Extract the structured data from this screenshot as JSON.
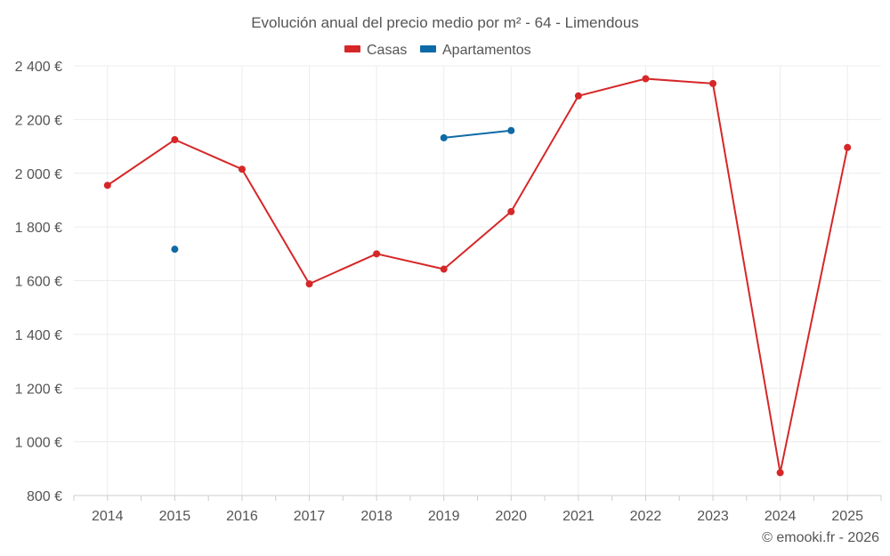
{
  "chart_data": {
    "type": "line",
    "title": "Evolución anual del precio medio por m² - 64 - Limendous",
    "categories": [
      "2014",
      "2015",
      "2016",
      "2017",
      "2018",
      "2019",
      "2020",
      "2021",
      "2022",
      "2023",
      "2024",
      "2025"
    ],
    "ylim": [
      800,
      2400
    ],
    "yticks": [
      800,
      1000,
      1200,
      1400,
      1600,
      1800,
      2000,
      2200,
      2400
    ],
    "ytick_labels": [
      "800 €",
      "1 000 €",
      "1 200 €",
      "1 400 €",
      "1 600 €",
      "1 800 €",
      "2 000 €",
      "2 200 €",
      "2 400 €"
    ],
    "grid": true,
    "legend_position": "top-center",
    "series": [
      {
        "name": "Casas",
        "color": "#d62728",
        "values": [
          1955,
          2125,
          2015,
          1588,
          1700,
          1643,
          1857,
          2288,
          2352,
          2334,
          885,
          2096
        ]
      },
      {
        "name": "Apartamentos",
        "color": "#0f6aa6",
        "values": [
          null,
          1717,
          null,
          null,
          null,
          2132,
          2159,
          null,
          null,
          null,
          null,
          null
        ]
      }
    ],
    "credit": "© emooki.fr - 2026"
  }
}
